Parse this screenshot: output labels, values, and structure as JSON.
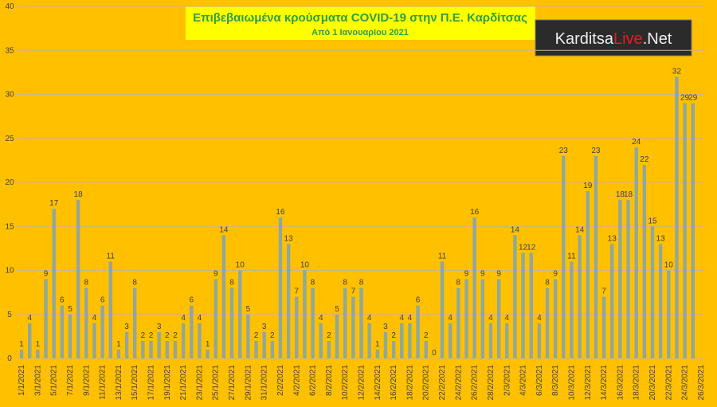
{
  "chart_data": {
    "type": "bar",
    "title": "Επιβεβαιωμένα κρούσματα COVID-19 στην Π.Ε. Καρδίτσας",
    "subtitle": "Από 1 Ιανουαρίου 2021",
    "logo": [
      "Karditsa",
      "Live",
      ".Net"
    ],
    "categories": [
      "1/1/2021",
      null,
      "3/1/2021",
      null,
      "5/1/2021",
      null,
      "7/1/2021",
      null,
      "9/1/2021",
      null,
      "11/1/2021",
      null,
      "13/1/2021",
      null,
      "15/1/2021",
      null,
      "17/1/2021",
      null,
      "19/1/2021",
      null,
      "21/1/2021",
      null,
      "23/1/2021",
      null,
      "25/1/2021",
      null,
      "27/1/2021",
      null,
      "29/1/2021",
      null,
      "31/1/2021",
      null,
      "2/2/2021",
      null,
      "4/2/2021",
      null,
      "6/2/2021",
      null,
      "8/2/2021",
      null,
      "10/2/2021",
      null,
      "12/2/2021",
      null,
      "14/2/2021",
      null,
      "16/2/2021",
      null,
      "18/2/2021",
      null,
      "20/2/2021",
      null,
      "22/2/2021",
      null,
      "24/2/2021",
      null,
      "26/2/2021",
      null,
      "28/2/2021",
      null,
      "2/3/2021",
      null,
      "4/3/2021",
      null,
      "6/3/2021",
      null,
      "8/3/2021",
      null,
      "10/3/2021",
      null,
      "12/3/2021",
      null,
      "14/3/2021",
      null,
      "16/3/2021",
      null,
      "18/3/2021",
      null,
      "20/3/2021",
      null,
      "22/3/2021",
      null,
      "24/3/2021",
      null,
      "26/3/2021"
    ],
    "values": [
      1,
      4,
      1,
      9,
      17,
      6,
      5,
      18,
      8,
      4,
      6,
      11,
      1,
      3,
      8,
      2,
      2,
      3,
      2,
      2,
      4,
      6,
      4,
      1,
      9,
      14,
      8,
      10,
      5,
      2,
      3,
      2,
      16,
      13,
      7,
      10,
      8,
      4,
      2,
      5,
      8,
      7,
      8,
      4,
      1,
      3,
      2,
      4,
      4,
      6,
      2,
      0,
      11,
      4,
      8,
      9,
      16,
      9,
      4,
      9,
      4,
      14,
      12,
      12,
      4,
      8,
      9,
      23,
      11,
      14,
      19,
      23,
      7,
      13,
      18,
      18,
      24,
      22,
      15,
      13,
      10,
      32,
      29,
      29,
      null
    ],
    "color": "#8fa89b",
    "ylim": [
      0,
      40
    ],
    "yticks": [
      0,
      5,
      10,
      15,
      20,
      25,
      30,
      35,
      40
    ],
    "grid": true
  }
}
